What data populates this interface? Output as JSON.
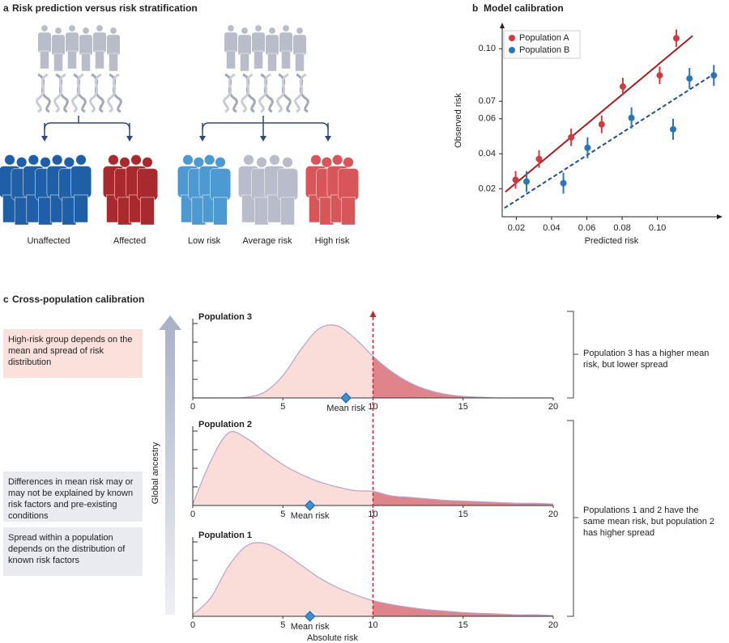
{
  "panel_a": {
    "label": "a",
    "title": "Risk prediction versus risk stratification",
    "groups": [
      "Unaffected",
      "Affected",
      "Low risk",
      "Average risk",
      "High risk"
    ]
  },
  "panel_c": {
    "label": "c",
    "title": "Cross-population calibration",
    "y_label": "Global ancestry",
    "threshold": 10,
    "left_notes": [
      "High-risk group depends on the mean and spread of risk distribution",
      "Differences in mean risk may or may not be explained by known risk factors and pre-existing conditions",
      "Spread within a population depends on the distribution of known risk factors"
    ],
    "right_notes": [
      "Population 3 has a higher mean risk, but lower spread",
      "Populations 1 and 2 have the same mean risk,  but population 2 has higher spread"
    ]
  },
  "chart_data": [
    {
      "type": "scatter",
      "panel_label": "b",
      "title": "Model calibration",
      "x_label": "Predicted risk",
      "y_label": "Observed risk",
      "xlim": [
        0.012,
        0.136
      ],
      "ylim": [
        0.004,
        0.114
      ],
      "xticks": [
        0.02,
        0.04,
        0.06,
        0.08,
        {
          "value": 0.1,
          "label": "0.10"
        }
      ],
      "yticks": [
        0.02,
        0.04,
        0.06,
        0.07,
        {
          "value": 0.1,
          "label": "0.10"
        }
      ],
      "legend": "upper left",
      "series": [
        {
          "name": "Population A",
          "color": "#d13b40",
          "x": [
            0.0196,
            0.0329,
            0.0511,
            0.0684,
            0.0804,
            0.1013,
            0.1107
          ],
          "values": [
            0.0251,
            0.037,
            0.0494,
            0.0568,
            0.0784,
            0.0848,
            0.106
          ],
          "errors": [
            0.005,
            0.005,
            0.005,
            0.005,
            0.005,
            0.005,
            0.005
          ]
        },
        {
          "name": "Population B",
          "color": "#2a74b8",
          "x": [
            0.0258,
            0.0467,
            0.0604,
            0.0853,
            0.1089,
            0.1182,
            0.132
          ],
          "values": [
            0.0241,
            0.0232,
            0.0434,
            0.0605,
            0.054,
            0.083,
            0.0848
          ],
          "errors": [
            0.006,
            0.006,
            0.006,
            0.006,
            0.006,
            0.006,
            0.006
          ]
        }
      ],
      "fit_lines": [
        {
          "color": "#a51e22",
          "style": "solid",
          "x": [
            0.0138,
            0.12
          ],
          "values": [
            0.0182,
            0.1074
          ]
        },
        {
          "color": "#1f4f96",
          "style": "dashed",
          "x": [
            0.0133,
            0.1316
          ],
          "values": [
            0.009,
            0.0853
          ]
        }
      ]
    },
    {
      "type": "area",
      "title": "Population 3",
      "x": [
        0,
        1,
        2,
        3,
        4,
        5,
        6,
        7,
        8,
        9,
        10,
        11,
        12,
        13,
        14,
        15,
        16,
        17,
        18,
        19,
        20
      ],
      "values": [
        0,
        0,
        0,
        0.01,
        0.08,
        0.3,
        0.65,
        0.93,
        0.97,
        0.8,
        0.56,
        0.36,
        0.21,
        0.11,
        0.05,
        0.02,
        0.01,
        0,
        0,
        0,
        0
      ],
      "xlim": [
        0,
        20
      ],
      "ylim": [
        0,
        1
      ],
      "xticks": [
        0,
        5,
        10,
        15,
        20
      ],
      "yticks": [
        0.25,
        0.5,
        0.75,
        1
      ],
      "mean": 8.5,
      "mean_label": "Mean risk"
    },
    {
      "type": "area",
      "title": "Population 2",
      "x": [
        0,
        1,
        2,
        3,
        4,
        5,
        6,
        7,
        8,
        9,
        10,
        11,
        12,
        13,
        14,
        15,
        16,
        17,
        18,
        19,
        20
      ],
      "values": [
        0.02,
        0.6,
        0.98,
        0.9,
        0.72,
        0.55,
        0.42,
        0.32,
        0.25,
        0.2,
        0.19,
        0.13,
        0.11,
        0.09,
        0.07,
        0.06,
        0.05,
        0.04,
        0.03,
        0.03,
        0.02
      ],
      "xlim": [
        0,
        20
      ],
      "ylim": [
        0,
        1
      ],
      "xticks": [
        0,
        5,
        10,
        15,
        20
      ],
      "yticks": [
        0.25,
        0.5,
        0.75,
        1
      ],
      "mean": 6.5,
      "mean_label": "Mean risk"
    },
    {
      "type": "area",
      "title": "Population 1",
      "x_label": "Absolute risk",
      "x": [
        0,
        1,
        2,
        3,
        4,
        5,
        6,
        7,
        8,
        9,
        10,
        11,
        12,
        13,
        14,
        15,
        16,
        17,
        18,
        19,
        20
      ],
      "values": [
        0.02,
        0.25,
        0.68,
        0.95,
        0.98,
        0.86,
        0.69,
        0.52,
        0.39,
        0.29,
        0.21,
        0.16,
        0.12,
        0.09,
        0.07,
        0.05,
        0.04,
        0.03,
        0.02,
        0.02,
        0.01
      ],
      "xlim": [
        0,
        20
      ],
      "ylim": [
        0,
        1
      ],
      "xticks": [
        0,
        5,
        10,
        15,
        20
      ],
      "yticks": [
        0.25,
        0.5,
        0.75,
        1
      ],
      "mean": 6.5,
      "mean_label": "Mean risk"
    }
  ]
}
